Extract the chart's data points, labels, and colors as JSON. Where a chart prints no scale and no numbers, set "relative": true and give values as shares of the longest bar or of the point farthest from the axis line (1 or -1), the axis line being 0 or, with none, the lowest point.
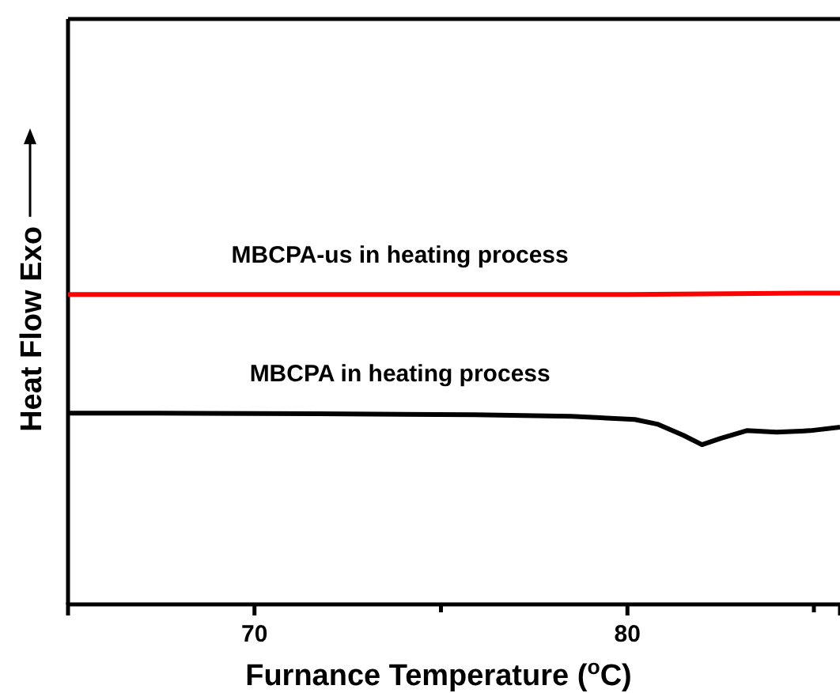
{
  "chart_data": {
    "type": "line",
    "xlabel": "Furnance Temperature ($^{o}$C)",
    "ylabel": "Heat Flow Exo",
    "relative": true,
    "xlim": [
      65,
      85.7
    ],
    "xticks": [
      70,
      {
        "value": 75,
        "label": null
      },
      80,
      {
        "value": 85,
        "label": null
      }
    ],
    "series": [
      {
        "name": "MBCPA-us in heating process",
        "color": "#ff0000",
        "x": [
          65,
          70,
          75,
          80,
          85,
          85.7
        ],
        "values": [
          0.995,
          0.995,
          0.995,
          0.995,
          1.0,
          1.0
        ]
      },
      {
        "name": "MBCPA in heating process",
        "color": "#000000",
        "x": [
          65,
          67.4,
          71.7,
          75.9,
          78.5,
          80.2,
          80.8,
          81.5,
          82.0,
          82.5,
          83.2,
          84.0,
          84.9,
          85.7
        ],
        "values": [
          0.614,
          0.614,
          0.612,
          0.609,
          0.604,
          0.594,
          0.579,
          0.543,
          0.513,
          0.533,
          0.558,
          0.553,
          0.558,
          0.569
        ]
      }
    ]
  }
}
